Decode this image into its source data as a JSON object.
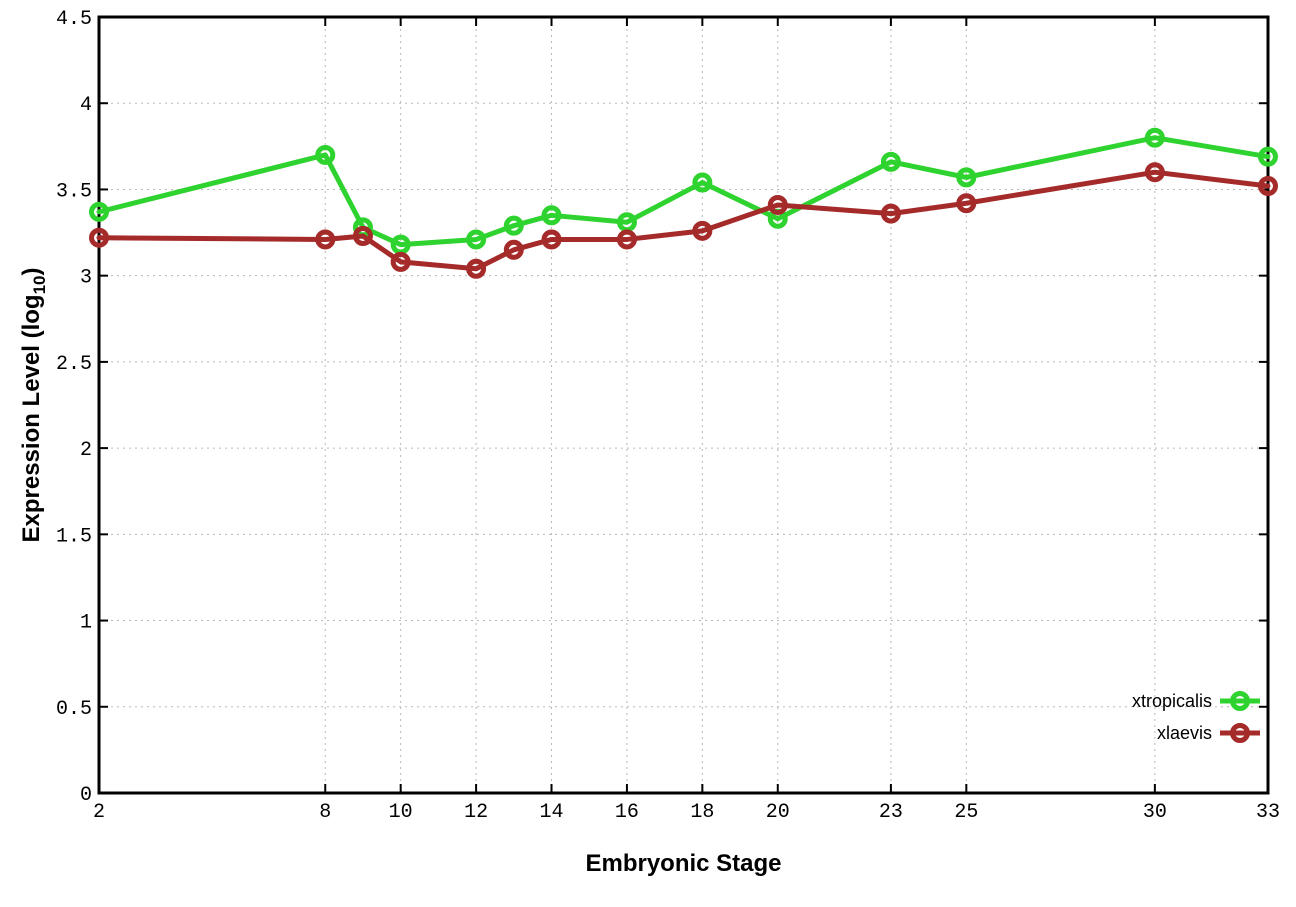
{
  "chart_data": {
    "type": "line",
    "title": "",
    "xlabel": "Embryonic Stage",
    "ylabel": "Expression Level (log10)",
    "ylabel_parts": {
      "prefix": "Expression Level (log",
      "sub": "10",
      "suffix": ")"
    },
    "x": [
      2,
      8,
      9,
      10,
      12,
      13,
      14,
      16,
      18,
      20,
      23,
      25,
      30,
      33
    ],
    "series": [
      {
        "name": "xtropicalis",
        "color": "#2fd32f",
        "marker": "open-circle",
        "values": [
          3.37,
          3.7,
          3.28,
          3.18,
          3.21,
          3.29,
          3.35,
          3.31,
          3.54,
          3.33,
          3.66,
          3.57,
          3.8,
          3.69
        ]
      },
      {
        "name": "xlaevis",
        "color": "#a52a2a",
        "marker": "open-circle",
        "values": [
          3.22,
          3.21,
          3.23,
          3.08,
          3.04,
          3.15,
          3.21,
          3.21,
          3.26,
          3.41,
          3.36,
          3.42,
          3.6,
          3.52
        ]
      }
    ],
    "xlim": [
      2,
      33
    ],
    "ylim": [
      0,
      4.5
    ],
    "x_ticks": [
      {
        "v": 2,
        "label": "2"
      },
      {
        "v": 8,
        "label": "8"
      },
      {
        "v": 10,
        "label": "10"
      },
      {
        "v": 12,
        "label": "12"
      },
      {
        "v": 14,
        "label": "14"
      },
      {
        "v": 16,
        "label": "16"
      },
      {
        "v": 18,
        "label": "18"
      },
      {
        "v": 20,
        "label": "20"
      },
      {
        "v": 23,
        "label": "23"
      },
      {
        "v": 25,
        "label": "25"
      },
      {
        "v": 30,
        "label": "30"
      },
      {
        "v": 33,
        "label": "33"
      }
    ],
    "y_ticks": [
      {
        "v": 0,
        "label": "0"
      },
      {
        "v": 0.5,
        "label": "0.5"
      },
      {
        "v": 1,
        "label": "1"
      },
      {
        "v": 1.5,
        "label": "1.5"
      },
      {
        "v": 2,
        "label": "2"
      },
      {
        "v": 2.5,
        "label": "2.5"
      },
      {
        "v": 3,
        "label": "3"
      },
      {
        "v": 3.5,
        "label": "3.5"
      },
      {
        "v": 4,
        "label": "4"
      },
      {
        "v": 4.5,
        "label": "4.5"
      }
    ],
    "grid": true,
    "legend_position": "bottom-right"
  },
  "colors": {
    "background": "#ffffff",
    "border": "#000000",
    "grid": "#b8b8b8",
    "text": "#000000",
    "xtropicalis": "#2fd32f",
    "xlaevis": "#a52a2a"
  }
}
